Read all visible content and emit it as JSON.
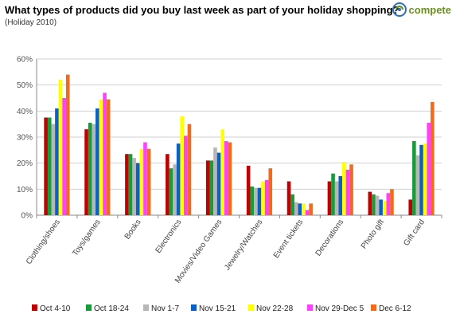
{
  "header": {
    "title": "What types of products did you buy last week as part of your holiday shopping?",
    "subtitle": "(Holiday 2010)",
    "logo_text": "compete",
    "logo_icon": "compete-swirl-icon"
  },
  "colors": {
    "oct4": "#c00000",
    "oct18": "#1a9b3a",
    "nov1": "#b7b7b7",
    "nov15": "#0b60c8",
    "nov22": "#ffff00",
    "nov29": "#ff40ff",
    "dec6": "#f26b1d"
  },
  "chart_data": {
    "type": "bar",
    "title": "What types of products did you buy last week as part of your holiday shopping?",
    "subtitle": "(Holiday 2010)",
    "xlabel": "",
    "ylabel": "",
    "ylim": [
      0,
      60
    ],
    "yticks": [
      "0%",
      "10%",
      "20%",
      "30%",
      "40%",
      "50%",
      "60%"
    ],
    "grid": true,
    "legend_position": "bottom",
    "categories": [
      "Clothing/shoes",
      "Toys/games",
      "Books",
      "Electronics",
      "Movies/Video Games",
      "Jewelry/Watches",
      "Event tickets",
      "Decorations",
      "Photo gift",
      "Gift card"
    ],
    "series": [
      {
        "name": "Oct 4-10",
        "color": "#c00000",
        "values": [
          37.5,
          33,
          23.5,
          23.5,
          21,
          19,
          13,
          13,
          9,
          6
        ]
      },
      {
        "name": "Oct 18-24",
        "color": "#1a9b3a",
        "values": [
          37.5,
          35.5,
          23.5,
          18,
          21,
          11,
          8,
          16,
          8,
          28.5
        ]
      },
      {
        "name": "Nov 1-7",
        "color": "#b7b7b7",
        "values": [
          35,
          35,
          22,
          19.5,
          26,
          10.5,
          5,
          13,
          7.5,
          23
        ]
      },
      {
        "name": "Nov 15-21",
        "color": "#0b60c8",
        "values": [
          41,
          41,
          20,
          27.5,
          24,
          10.5,
          4.5,
          15,
          6,
          27
        ]
      },
      {
        "name": "Nov 22-28",
        "color": "#ffff00",
        "values": [
          52,
          44.5,
          25.5,
          38,
          33,
          13,
          4.5,
          20.5,
          5.5,
          27.5
        ]
      },
      {
        "name": "Nov 29-Dec 5",
        "color": "#ff40ff",
        "values": [
          45,
          47,
          28,
          30.5,
          28.5,
          13.5,
          2,
          17.5,
          8.5,
          35.5
        ]
      },
      {
        "name": "Dec 6-12",
        "color": "#f26b1d",
        "values": [
          54,
          44.5,
          25.5,
          35,
          28,
          18,
          4.5,
          19.5,
          10,
          43.5
        ]
      }
    ]
  }
}
